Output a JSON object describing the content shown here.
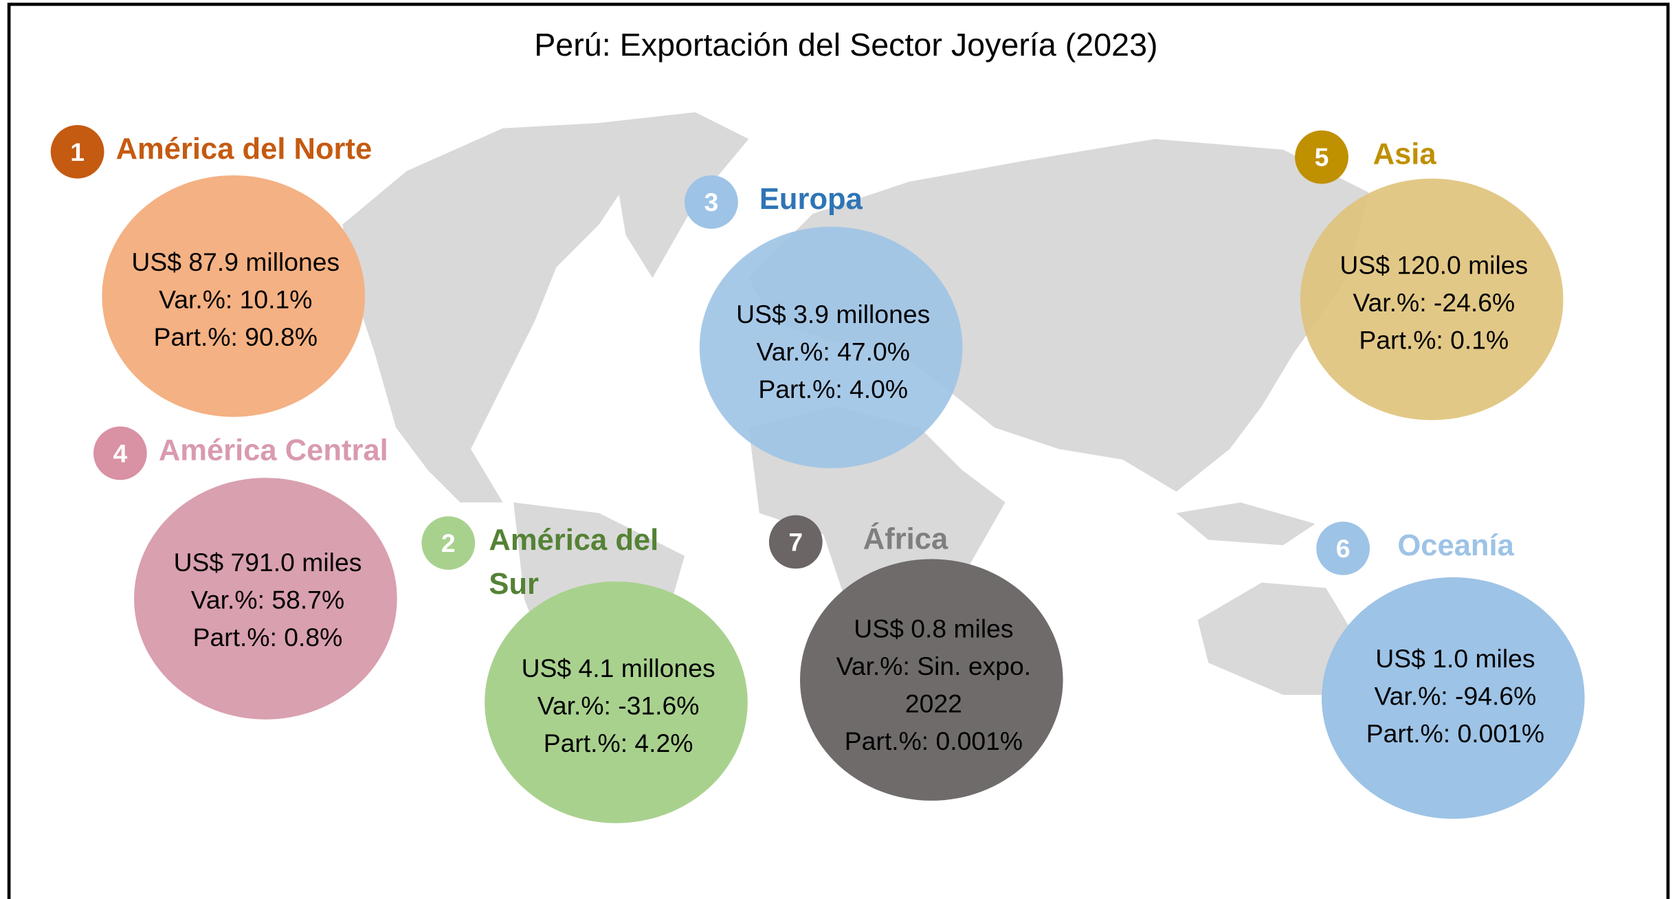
{
  "title": "Perú: Exportación del Sector Joyería (2023)",
  "regions": [
    {
      "rank": "1",
      "name_lines": [
        "América del Norte"
      ],
      "lines": [
        "US$ 87.9 millones",
        "Var.%: 10.1%",
        "Part.%: 90.8%"
      ]
    },
    {
      "rank": "4",
      "name_lines": [
        "América Central"
      ],
      "lines": [
        "US$ 791.0 miles",
        "Var.%: 58.7%",
        "Part.%: 0.8%"
      ]
    },
    {
      "rank": "2",
      "name_lines": [
        "América del",
        "Sur"
      ],
      "lines": [
        "US$ 4.1 millones",
        "Var.%: -31.6%",
        "Part.%: 4.2%"
      ]
    },
    {
      "rank": "3",
      "name_lines": [
        "Europa"
      ],
      "lines": [
        "US$ 3.9 millones",
        "Var.%: 47.0%",
        "Part.%: 4.0%"
      ]
    },
    {
      "rank": "7",
      "name_lines": [
        "África"
      ],
      "lines": [
        "US$ 0.8 miles",
        "Var.%: Sin. expo.",
        "2022",
        "Part.%: 0.001%"
      ]
    },
    {
      "rank": "5",
      "name_lines": [
        "Asia"
      ],
      "lines": [
        "US$ 120.0 miles",
        "Var.%: -24.6%",
        "Part.%: 0.1%"
      ]
    },
    {
      "rank": "6",
      "name_lines": [
        "Oceanía"
      ],
      "lines": [
        "US$ 1.0 miles",
        "Var.%: -94.6%",
        "Part.%: 0.001%"
      ]
    }
  ]
}
